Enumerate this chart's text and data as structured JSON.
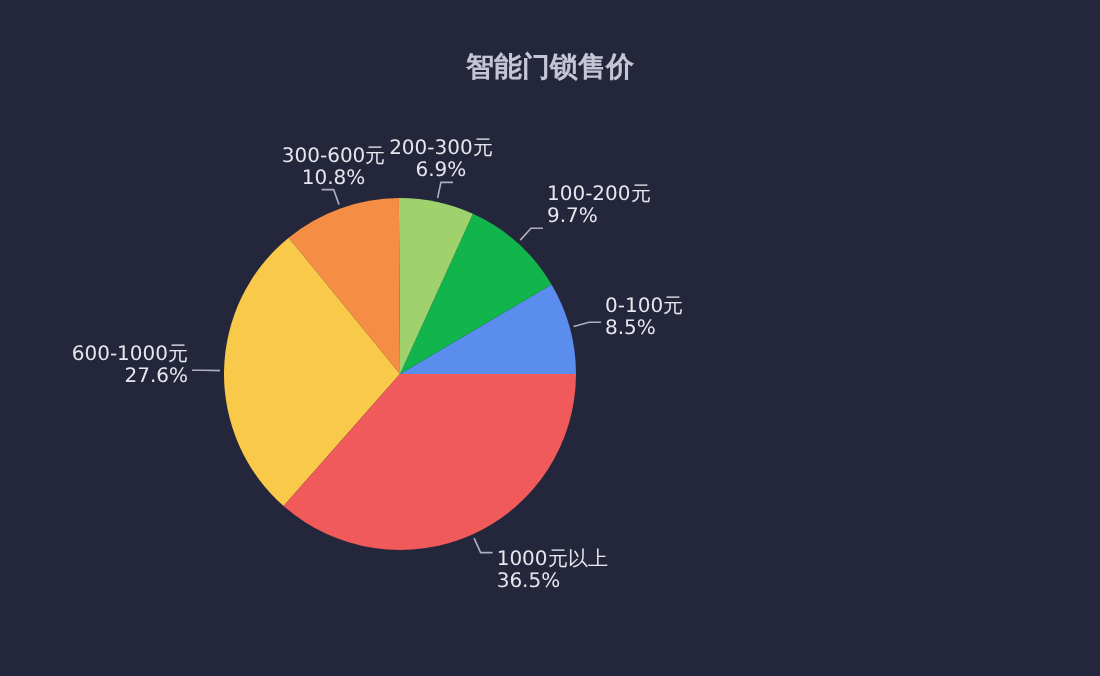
{
  "chart_data": {
    "type": "pie",
    "title": "智能门锁售价",
    "categories": [
      "0-100元",
      "100-200元",
      "200-300元",
      "300-600元",
      "600-1000元",
      "1000元以上"
    ],
    "values": [
      8.5,
      9.7,
      6.9,
      10.8,
      27.6,
      36.5
    ],
    "value_labels": [
      "8.5%",
      "9.7%",
      "6.9%",
      "10.8%",
      "27.6%",
      "36.5%"
    ],
    "colors": [
      "#5b8def",
      "#12b54b",
      "#9fd26c",
      "#f58d45",
      "#f9c94a",
      "#f15a5a"
    ]
  }
}
